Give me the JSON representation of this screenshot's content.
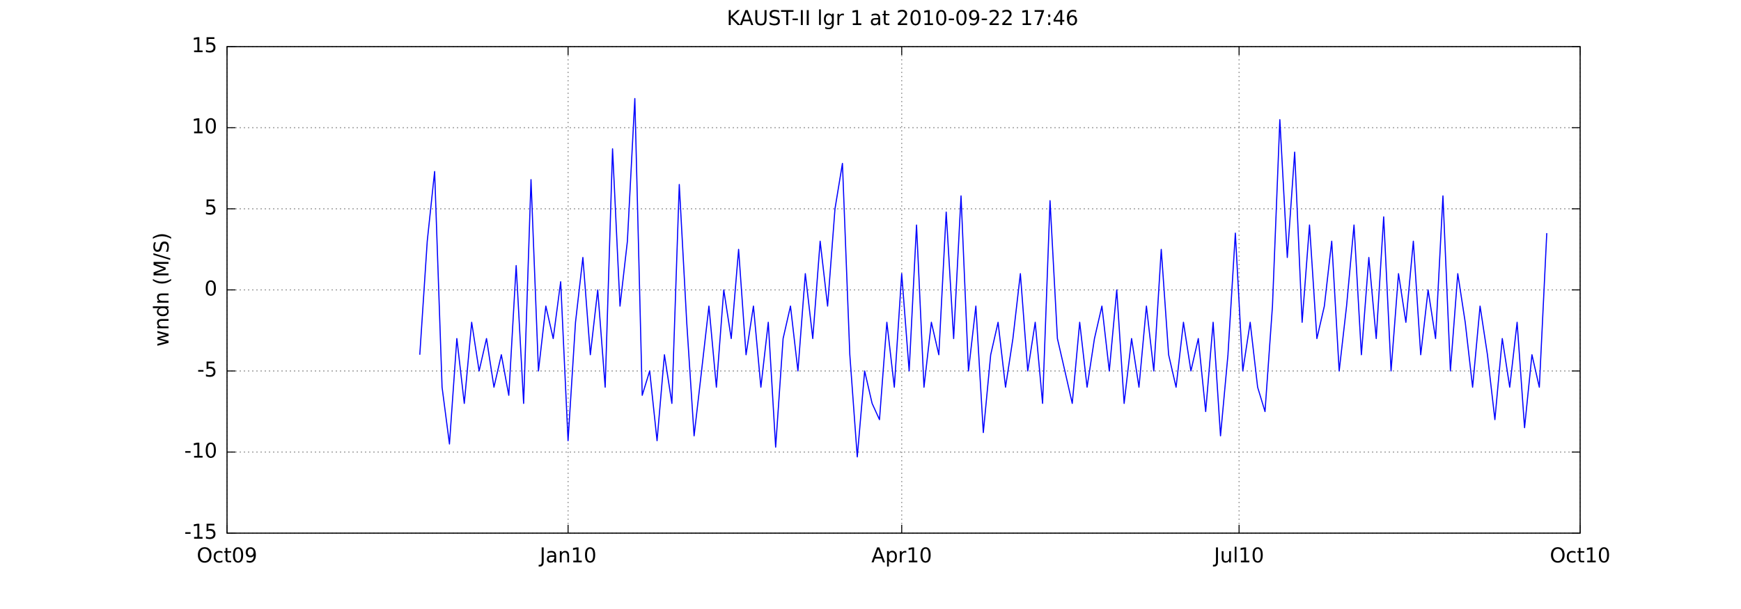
{
  "chart_data": {
    "type": "line",
    "title": "KAUST-II lgr 1 at 2010-09-22 17:46",
    "y_label": "wndn (M/S)",
    "xlim": [
      0,
      365
    ],
    "xticks": [
      {
        "value": 0,
        "label": "Oct09"
      },
      {
        "value": 92,
        "label": "Jan10"
      },
      {
        "value": 182,
        "label": "Apr10"
      },
      {
        "value": 273,
        "label": "Jul10"
      },
      {
        "value": 365,
        "label": "Oct10"
      }
    ],
    "ylim": [
      -15,
      15
    ],
    "yticks": [
      -15,
      -10,
      -5,
      0,
      5,
      10,
      15
    ],
    "grid": true,
    "x": [
      52,
      54,
      56,
      58,
      60,
      62,
      64,
      66,
      68,
      70,
      72,
      74,
      76,
      78,
      80,
      82,
      84,
      86,
      88,
      90,
      92,
      94,
      96,
      98,
      100,
      102,
      104,
      106,
      108,
      110,
      112,
      114,
      116,
      118,
      120,
      122,
      124,
      126,
      128,
      130,
      132,
      134,
      136,
      138,
      140,
      142,
      144,
      146,
      148,
      150,
      152,
      154,
      156,
      158,
      160,
      162,
      164,
      166,
      168,
      170,
      172,
      174,
      176,
      178,
      180,
      182,
      184,
      186,
      188,
      190,
      192,
      194,
      196,
      198,
      200,
      202,
      204,
      206,
      208,
      210,
      212,
      214,
      216,
      218,
      220,
      222,
      224,
      226,
      228,
      230,
      232,
      234,
      236,
      238,
      240,
      242,
      244,
      246,
      248,
      250,
      252,
      254,
      256,
      258,
      260,
      262,
      264,
      266,
      268,
      270,
      272,
      274,
      276,
      278,
      280,
      282,
      284,
      286,
      288,
      290,
      292,
      294,
      296,
      298,
      300,
      302,
      304,
      306,
      308,
      310,
      312,
      314,
      316,
      318,
      320,
      322,
      324,
      326,
      328,
      330,
      332,
      334,
      336,
      338,
      340,
      342,
      344,
      346,
      348,
      350,
      352,
      354,
      356
    ],
    "series": [
      {
        "color": "#0000ff",
        "values": [
          -4,
          3,
          7.3,
          -6,
          -9.5,
          -3,
          -7,
          -2,
          -5,
          -3,
          -6,
          -4,
          -6.5,
          1.5,
          -7,
          6.8,
          -5,
          -1,
          -3,
          0.5,
          -9.3,
          -2,
          2,
          -4,
          0,
          -6,
          8.7,
          -1,
          3,
          11.8,
          -6.5,
          -5,
          -9.3,
          -4,
          -7,
          6.5,
          -2,
          -9,
          -5,
          -1,
          -6,
          0,
          -3,
          2.5,
          -4,
          -1,
          -6,
          -2,
          -9.7,
          -3,
          -1,
          -5,
          1,
          -3,
          3,
          -1,
          5,
          7.8,
          -4,
          -10.3,
          -5,
          -7,
          -8,
          -2,
          -6,
          1,
          -5,
          4,
          -6,
          -2,
          -4,
          4.8,
          -3,
          5.8,
          -5,
          -1,
          -8.8,
          -4,
          -2,
          -6,
          -3,
          1,
          -5,
          -2,
          -7,
          5.5,
          -3,
          -5,
          -7,
          -2,
          -6,
          -3,
          -1,
          -5,
          0,
          -7,
          -3,
          -6,
          -1,
          -5,
          2.5,
          -4,
          -6,
          -2,
          -5,
          -3,
          -7.5,
          -2,
          -9,
          -4,
          3.5,
          -5,
          -2,
          -6,
          -7.5,
          -1,
          10.5,
          2,
          8.5,
          -2,
          4,
          -3,
          -1,
          3,
          -5,
          -1,
          4,
          -4,
          2,
          -3,
          4.5,
          -5,
          1,
          -2,
          3,
          -4,
          0,
          -3,
          5.8,
          -5,
          1,
          -2,
          -6,
          -1,
          -4,
          -8,
          -3,
          -6,
          -2,
          -8.5,
          -4,
          -6,
          3.5
        ]
      }
    ]
  }
}
